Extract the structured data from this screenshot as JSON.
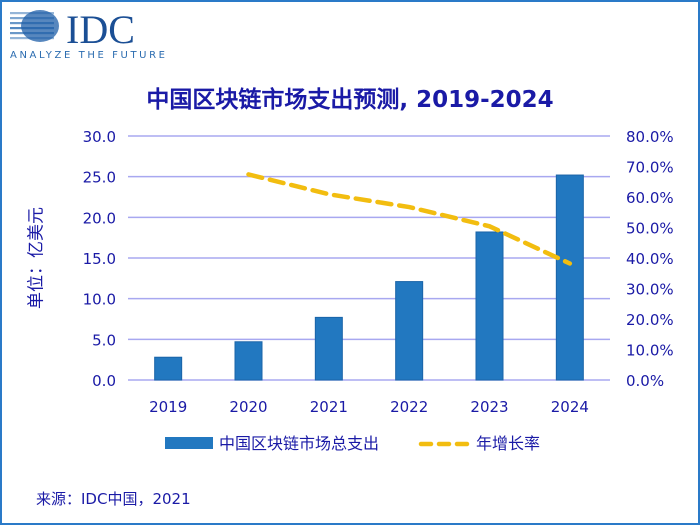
{
  "logo": {
    "text": "IDC",
    "tagline": "ANALYZE THE FUTURE"
  },
  "colors": {
    "bar": "#2278c0",
    "line": "#f2bd10",
    "text": "#1a1aa6",
    "grid": "#a8a8f0",
    "frame": "#2a7ac8"
  },
  "source": "来源：IDC中国，2021",
  "chart_data": {
    "type": "bar+line",
    "title": "中国区块链市场支出预测, 2019-2024",
    "ylabel": "单位：亿美元",
    "categories": [
      "2019",
      "2020",
      "2021",
      "2022",
      "2023",
      "2024"
    ],
    "series": [
      {
        "name": "中国区块链市场总支出",
        "type": "bar",
        "axis": "left",
        "values": [
          2.8,
          4.7,
          7.7,
          12.1,
          18.2,
          25.2
        ]
      },
      {
        "name": "年增长率",
        "type": "line",
        "style": "dashed",
        "axis": "right",
        "values": [
          null,
          67.4,
          60.9,
          56.7,
          50.4,
          38.2
        ]
      }
    ],
    "ylim": [
      0,
      30
    ],
    "yticks": [
      "0.0",
      "5.0",
      "10.0",
      "15.0",
      "20.0",
      "25.0",
      "30.0"
    ],
    "y2lim": [
      0,
      80
    ],
    "y2ticks": [
      "0.0%",
      "10.0%",
      "20.0%",
      "30.0%",
      "40.0%",
      "50.0%",
      "60.0%",
      "70.0%",
      "80.0%"
    ],
    "grid": true,
    "legend": "bottom"
  }
}
